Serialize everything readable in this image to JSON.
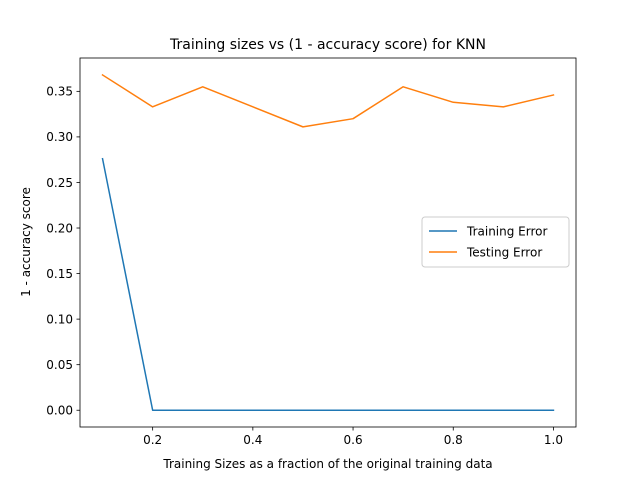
{
  "chart_data": {
    "type": "line",
    "title": "Training sizes vs (1 - accuracy score) for KNN",
    "xlabel": "Training Sizes as a fraction of the original training data",
    "ylabel": "1 - accuracy score",
    "xlim": [
      0.055,
      1.045
    ],
    "ylim": [
      -0.0184,
      0.3866
    ],
    "xticks": [
      0.2,
      0.4,
      0.6,
      0.8,
      1.0
    ],
    "xtick_labels": [
      "0.2",
      "0.4",
      "0.6",
      "0.8",
      "1.0"
    ],
    "yticks": [
      0.0,
      0.05,
      0.1,
      0.15,
      0.2,
      0.25,
      0.3,
      0.35
    ],
    "ytick_labels": [
      "0.00",
      "0.05",
      "0.10",
      "0.15",
      "0.20",
      "0.25",
      "0.30",
      "0.35"
    ],
    "grid": false,
    "legend_position": "center-right",
    "x": [
      0.1,
      0.2,
      0.3,
      0.4,
      0.5,
      0.6,
      0.7,
      0.8,
      0.9,
      1.0
    ],
    "series": [
      {
        "name": "Training Error",
        "color": "#1f77b4",
        "values": [
          0.276,
          0.0,
          0.0,
          0.0,
          0.0,
          0.0,
          0.0,
          0.0,
          0.0,
          0.0
        ]
      },
      {
        "name": "Testing Error",
        "color": "#ff7f0e",
        "values": [
          0.368,
          0.333,
          0.355,
          0.333,
          0.311,
          0.32,
          0.355,
          0.338,
          0.333,
          0.346
        ]
      }
    ]
  }
}
